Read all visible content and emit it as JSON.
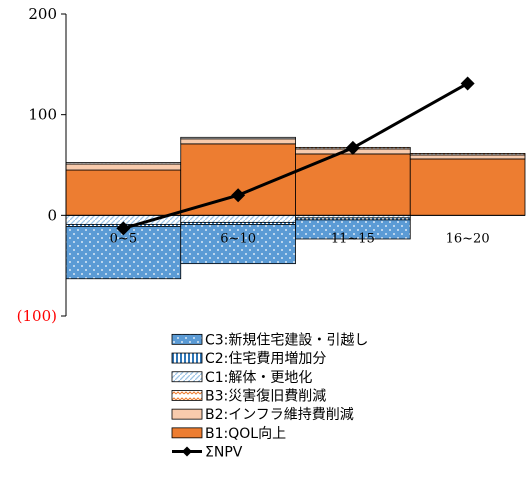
{
  "chart_data": {
    "type": "bar",
    "categories": [
      "0~5",
      "6~10",
      "11~15",
      "16~20"
    ],
    "ylim": [
      -100,
      200
    ],
    "yticks": [
      "200",
      "100",
      "0",
      "(100)"
    ],
    "grid": false,
    "legend_position": "bottom",
    "series": [
      {
        "name": "C3:新規住宅建設・引越し",
        "values": [
          -52,
          -39,
          -19,
          0
        ],
        "color": "#5b9bd5",
        "pattern": "dots"
      },
      {
        "name": "C2:住宅費用増加分",
        "values": [
          -2,
          -2,
          -2,
          0
        ],
        "color": "#2e75b6",
        "pattern": "vlines"
      },
      {
        "name": "C1:解体・更地化",
        "values": [
          -9,
          -7,
          -2.5,
          0
        ],
        "color": "#9dc3e6",
        "pattern": "diag"
      },
      {
        "name": "B3:災害復旧費削減",
        "values": [
          1.5,
          1.5,
          1.5,
          1.5
        ],
        "color": "#ed7d31",
        "pattern": "wave"
      },
      {
        "name": "B2:インフラ維持費削減",
        "values": [
          6,
          5,
          5,
          4
        ],
        "color": "#f8cbad",
        "pattern": "solid"
      },
      {
        "name": "B1:QOL向上",
        "values": [
          45,
          71,
          61,
          56
        ],
        "color": "#ed7d31",
        "pattern": "solid"
      }
    ],
    "line": {
      "name": "ΣNPV",
      "values": [
        -13,
        20,
        67,
        131
      ],
      "color": "#000000"
    }
  }
}
